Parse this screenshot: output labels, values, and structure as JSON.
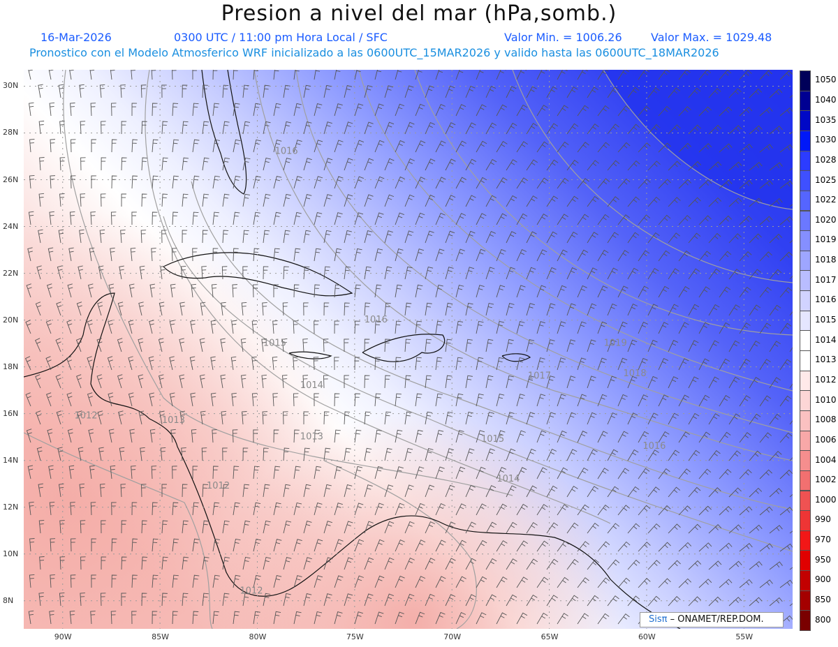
{
  "header": {
    "title": "Presion a nivel del mar (hPa,somb.)",
    "date": "16-Mar-2026",
    "time": "0300 UTC / 11:00 pm Hora Local / SFC",
    "vmin": "Valor Min. = 1006.26",
    "vmax": "Valor Max. = 1029.48",
    "model_line": "Pronostico con el Modelo Atmosferico WRF inicializado a las 0600UTC_15MAR2026 y valido hasta las  0600UTC_18MAR2026"
  },
  "map": {
    "lon_labels": [
      "90W",
      "85W",
      "80W",
      "75W",
      "70W",
      "65W",
      "60W",
      "55W"
    ],
    "lat_labels": [
      "30N",
      "28N",
      "26N",
      "24N",
      "22N",
      "20N",
      "18N",
      "16N",
      "14N",
      "12N",
      "10N",
      "8N"
    ],
    "lon_range": [
      -92,
      -52.5
    ],
    "lat_range": [
      6.8,
      30.7
    ],
    "contour_labels": [
      {
        "text": "1016",
        "lon": -79.1,
        "lat": 27.1
      },
      {
        "text": "1016",
        "lon": -74.5,
        "lat": 19.9
      },
      {
        "text": "1015",
        "lon": -79.7,
        "lat": 18.9
      },
      {
        "text": "1014",
        "lon": -77.8,
        "lat": 17.1
      },
      {
        "text": "1013",
        "lon": -77.8,
        "lat": 14.9
      },
      {
        "text": "1013",
        "lon": -84.9,
        "lat": 15.6
      },
      {
        "text": "1012",
        "lon": -89.4,
        "lat": 15.8
      },
      {
        "text": "1012",
        "lon": -82.6,
        "lat": 12.8
      },
      {
        "text": "1012",
        "lon": -80.9,
        "lat": 8.3
      },
      {
        "text": "1015",
        "lon": -68.5,
        "lat": 14.8
      },
      {
        "text": "1014",
        "lon": -67.7,
        "lat": 13.1
      },
      {
        "text": "1016",
        "lon": -60.2,
        "lat": 14.5
      },
      {
        "text": "1017",
        "lon": -66.1,
        "lat": 17.5
      },
      {
        "text": "1018",
        "lon": -61.2,
        "lat": 17.6
      },
      {
        "text": "1019",
        "lon": -62.2,
        "lat": 18.9
      }
    ]
  },
  "colorbar": {
    "levels": [
      "1050",
      "1040",
      "1035",
      "1030",
      "1028",
      "1025",
      "1022",
      "1020",
      "1019",
      "1018",
      "1017",
      "1016",
      "1015",
      "1014",
      "1013",
      "1012",
      "1010",
      "1008",
      "1006",
      "1004",
      "1002",
      "1000",
      "990",
      "970",
      "950",
      "900",
      "850",
      "800"
    ],
    "colors": [
      "#000059",
      "#000092",
      "#0008c6",
      "#0018f8",
      "#2c3cff",
      "#3f50ff",
      "#5565ff",
      "#6b78ff",
      "#858fff",
      "#9ea6ff",
      "#b9bdff",
      "#d1d3ff",
      "#e5e6ff",
      "#ffffff",
      "#ffffff",
      "#ffe9e9",
      "#fdd6d6",
      "#fbc1c1",
      "#f8a8a8",
      "#f58e8e",
      "#f27070",
      "#ef5252",
      "#ee3535",
      "#f21717",
      "#e00000",
      "#c20000",
      "#a40000",
      "#7a0000"
    ]
  },
  "colors": {
    "high": "#2b3df0",
    "low": "#f5b8b3",
    "neutral": "#ffffff",
    "contour": "#9a9a9a",
    "barb": "#444444"
  },
  "credit": {
    "logo": "Sisπ",
    "text": "– ONAMET/REP.DOM."
  }
}
